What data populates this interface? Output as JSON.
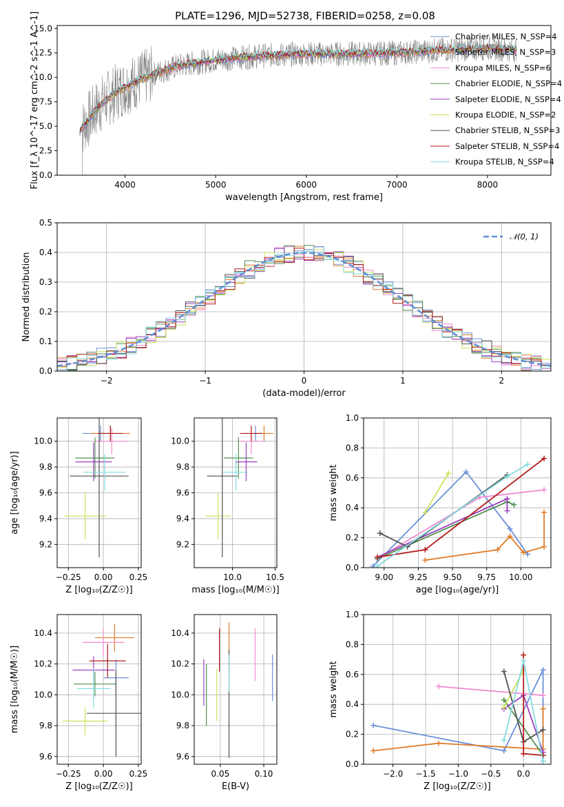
{
  "title": "PLATE=1296, MJD=52738, FIBERID=0258, z=0.08",
  "colors": {
    "data": "#808080",
    "gaussian": "#5b8ed6",
    "grid": "#b0b0b0",
    "models": [
      "#6a8fd8",
      "#e07b28",
      "#f08ad0",
      "#4f8f4f",
      "#9b3fc0",
      "#c7e45a",
      "#505050",
      "#b31b1b",
      "#86dbe0"
    ]
  },
  "chart_data": [
    {
      "id": "spectrum",
      "type": "line",
      "xlabel": "wavelength [Angstrom, rest frame]",
      "ylabel": "Flux [f_λ 10^-17 erg cm^-2 s^-1 A^-1]",
      "xlim": [
        3250,
        8700
      ],
      "ylim": [
        0,
        15.3
      ],
      "xticks": [
        "4000",
        "5000",
        "6000",
        "7000",
        "8000"
      ],
      "yticks": [
        "0.0",
        "2.5",
        "5.0",
        "7.5",
        "10.0",
        "12.5",
        "15.0"
      ],
      "grid": false,
      "legend_position": "top-right",
      "series": [
        {
          "name": "Chabrier MILES, N_SSP=4"
        },
        {
          "name": "Salpeter MILES, N_SSP=3"
        },
        {
          "name": "Kroupa MILES, N_SSP=6"
        },
        {
          "name": "Chabrier ELODIE, N_SSP=4"
        },
        {
          "name": "Salpeter ELODIE, N_SSP=4"
        },
        {
          "name": "Kroupa ELODIE, N_SSP=2"
        },
        {
          "name": "Chabrier STELIB, N_SSP=3"
        },
        {
          "name": "Salpeter STELIB, N_SSP=4"
        },
        {
          "name": "Kroupa STELIB, N_SSP=4"
        }
      ],
      "continuum_points": [
        [
          3500,
          4.5
        ],
        [
          3700,
          7.0
        ],
        [
          3900,
          8.5
        ],
        [
          4100,
          9.5
        ],
        [
          4300,
          10.3
        ],
        [
          4600,
          11.2
        ],
        [
          5000,
          11.8
        ],
        [
          5500,
          12.2
        ],
        [
          6000,
          12.4
        ],
        [
          6500,
          12.4
        ],
        [
          7000,
          12.5
        ],
        [
          7500,
          12.8
        ],
        [
          8000,
          13.0
        ],
        [
          8300,
          12.8
        ]
      ]
    },
    {
      "id": "residuals",
      "type": "histogram",
      "xlabel": "(data-model)/error",
      "ylabel": "Normed distribution",
      "xlim": [
        -2.5,
        2.5
      ],
      "ylim": [
        0,
        0.5
      ],
      "xticks": [
        "−2",
        "−1",
        "0",
        "1",
        "2"
      ],
      "yticks": [
        "0.0",
        "0.1",
        "0.2",
        "0.3",
        "0.4",
        "0.5"
      ],
      "grid": true,
      "legend": "𝒩(0, 1)",
      "legend_position": "top-right",
      "bin_width": 0.1
    },
    {
      "id": "age-vs-Z",
      "type": "errorbar",
      "xlabel": "Z [log₁₀(Z/Z☉)]",
      "ylabel": "age [log₁₀(age/yr)]",
      "xlim": [
        -0.33,
        0.27
      ],
      "ylim": [
        9.02,
        10.18
      ],
      "xticks": [
        "−0.25",
        "0.00",
        "0.25"
      ],
      "yticks": [
        "9.2",
        "9.4",
        "9.6",
        "9.8",
        "10.0"
      ],
      "grid": true,
      "points": [
        {
          "x": -0.02,
          "y": 10.06,
          "xerr": 0.13,
          "yerr": 0.06
        },
        {
          "x": 0.05,
          "y": 10.06,
          "xerr": 0.14,
          "yerr": 0.06
        },
        {
          "x": 0.06,
          "y": 10.0,
          "xerr": 0.12,
          "yerr": 0.1
        },
        {
          "x": -0.06,
          "y": 9.87,
          "xerr": 0.14,
          "yerr": 0.16
        },
        {
          "x": -0.07,
          "y": 9.84,
          "xerr": 0.13,
          "yerr": 0.15
        },
        {
          "x": -0.13,
          "y": 9.42,
          "xerr": 0.15,
          "yerr": 0.18
        },
        {
          "x": -0.03,
          "y": 9.73,
          "xerr": 0.21,
          "yerr": 0.63
        },
        {
          "x": 0.05,
          "y": 10.06,
          "xerr": 0.09,
          "yerr": 0.06
        },
        {
          "x": 0.01,
          "y": 9.76,
          "xerr": 0.15,
          "yerr": 0.14
        }
      ]
    },
    {
      "id": "age-vs-mass",
      "type": "errorbar",
      "xlabel": "mass [log₁₀(M/M☉)]",
      "ylabel": "",
      "xlim": [
        9.55,
        10.52
      ],
      "ylim": [
        9.02,
        10.18
      ],
      "xticks": [
        "10.0",
        "10.5"
      ],
      "yticks": [
        "9.2",
        "9.4",
        "9.6",
        "9.8",
        "10.0"
      ],
      "grid": true,
      "points": [
        {
          "x": 10.27,
          "y": 10.06,
          "xerr": 0.13,
          "yerr": 0.06
        },
        {
          "x": 10.37,
          "y": 10.06,
          "xerr": 0.11,
          "yerr": 0.06
        },
        {
          "x": 10.22,
          "y": 10.0,
          "xerr": 0.14,
          "yerr": 0.1
        },
        {
          "x": 10.07,
          "y": 9.87,
          "xerr": 0.17,
          "yerr": 0.16
        },
        {
          "x": 10.16,
          "y": 9.84,
          "xerr": 0.13,
          "yerr": 0.15
        },
        {
          "x": 9.83,
          "y": 9.42,
          "xerr": 0.15,
          "yerr": 0.18
        },
        {
          "x": 9.88,
          "y": 9.73,
          "xerr": 0.18,
          "yerr": 0.63
        },
        {
          "x": 10.22,
          "y": 10.06,
          "xerr": 0.13,
          "yerr": 0.06
        },
        {
          "x": 10.04,
          "y": 9.76,
          "xerr": 0.15,
          "yerr": 0.14
        }
      ]
    },
    {
      "id": "weight-vs-age",
      "type": "line",
      "xlabel": "age  [log₁₀(age/yr)]",
      "ylabel": "mass weight",
      "xlim": [
        8.85,
        10.22
      ],
      "ylim": [
        0,
        1.0
      ],
      "xticks": [
        "9.00",
        "9.25",
        "9.50",
        "9.75",
        "10.00"
      ],
      "yticks": [
        "0.0",
        "0.2",
        "0.4",
        "0.6",
        "0.8",
        "1.0"
      ],
      "grid": true,
      "series": [
        {
          "points": [
            [
              8.92,
              0.01
            ],
            [
              9.6,
              0.64
            ],
            [
              9.92,
              0.26
            ],
            [
              10.05,
              0.09
            ]
          ]
        },
        {
          "points": [
            [
              9.3,
              0.05
            ],
            [
              9.83,
              0.12
            ],
            [
              9.92,
              0.21
            ],
            [
              10.02,
              0.1
            ],
            [
              10.17,
              0.14
            ],
            [
              10.17,
              0.37
            ]
          ]
        },
        {
          "points": [
            [
              8.95,
              0.06
            ],
            [
              9.7,
              0.47
            ],
            [
              10.17,
              0.52
            ]
          ]
        },
        {
          "points": [
            [
              8.95,
              0.06
            ],
            [
              9.9,
              0.44
            ],
            [
              9.95,
              0.42
            ]
          ]
        },
        {
          "points": [
            [
              8.95,
              0.07
            ],
            [
              9.9,
              0.46
            ],
            [
              9.9,
              0.38
            ]
          ]
        },
        {
          "points": [
            [
              9.3,
              0.37
            ],
            [
              9.47,
              0.63
            ]
          ]
        },
        {
          "points": [
            [
              8.97,
              0.23
            ],
            [
              9.17,
              0.14
            ],
            [
              9.9,
              0.62
            ]
          ]
        },
        {
          "points": [
            [
              8.95,
              0.07
            ],
            [
              9.3,
              0.12
            ],
            [
              10.17,
              0.73
            ]
          ]
        },
        {
          "points": [
            [
              8.95,
              0.01
            ],
            [
              9.9,
              0.61
            ],
            [
              10.05,
              0.69
            ]
          ]
        }
      ]
    },
    {
      "id": "mass-vs-Z",
      "type": "errorbar",
      "xlabel": "Z [log₁₀(Z/Z☉)]",
      "ylabel": "mass [log₁₀(M/M☉)]",
      "xlim": [
        -0.33,
        0.27
      ],
      "ylim": [
        9.55,
        10.52
      ],
      "xticks": [
        "−0.25",
        "0.00",
        "0.25"
      ],
      "yticks": [
        "9.6",
        "9.8",
        "10.0",
        "10.2",
        "10.4"
      ],
      "grid": true,
      "points": [
        {
          "x": 0.09,
          "y": 10.11,
          "xerr": 0.09,
          "yerr": 0.12
        },
        {
          "x": 0.08,
          "y": 10.37,
          "xerr": 0.14,
          "yerr": 0.09
        },
        {
          "x": 0.0,
          "y": 10.34,
          "xerr": 0.15,
          "yerr": 0.09
        },
        {
          "x": -0.06,
          "y": 10.07,
          "xerr": 0.15,
          "yerr": 0.08
        },
        {
          "x": -0.07,
          "y": 10.16,
          "xerr": 0.15,
          "yerr": 0.09
        },
        {
          "x": -0.13,
          "y": 9.83,
          "xerr": 0.16,
          "yerr": 0.09
        },
        {
          "x": 0.09,
          "y": 9.88,
          "xerr": 0.21,
          "yerr": 0.28
        },
        {
          "x": 0.03,
          "y": 10.22,
          "xerr": 0.13,
          "yerr": 0.11
        },
        {
          "x": -0.07,
          "y": 10.04,
          "xerr": 0.12,
          "yerr": 0.13
        }
      ]
    },
    {
      "id": "mass-vs-EBV",
      "type": "errorbar",
      "xlabel": "E(B-V)",
      "ylabel": "",
      "xlim": [
        0.02,
        0.115
      ],
      "ylim": [
        9.55,
        10.52
      ],
      "xticks": [
        "0.05",
        "0.10"
      ],
      "yticks": [
        "9.6",
        "9.8",
        "10.0",
        "10.2",
        "10.4"
      ],
      "grid": true,
      "points": [
        {
          "x": 0.11,
          "y": 10.11,
          "yerr": 0.15
        },
        {
          "x": 0.06,
          "y": 10.31,
          "yerr": 0.16
        },
        {
          "x": 0.09,
          "y": 10.26,
          "yerr": 0.17
        },
        {
          "x": 0.034,
          "y": 10.0,
          "yerr": 0.2
        },
        {
          "x": 0.031,
          "y": 10.08,
          "yerr": 0.15
        },
        {
          "x": 0.046,
          "y": 10.0,
          "yerr": 0.17
        },
        {
          "x": 0.06,
          "y": 9.94,
          "yerr": 0.35
        },
        {
          "x": 0.049,
          "y": 10.29,
          "yerr": 0.14
        },
        {
          "x": 0.06,
          "y": 10.14,
          "yerr": 0.12
        }
      ]
    },
    {
      "id": "weight-vs-Z",
      "type": "line",
      "xlabel": "Z [log₁₀(Z/Z☉)]",
      "ylabel": "mass weight",
      "xlim": [
        -2.45,
        0.42
      ],
      "ylim": [
        0,
        1.0
      ],
      "xticks": [
        "−2.0",
        "−1.5",
        "−1.0",
        "−0.5",
        "0.0"
      ],
      "yticks": [
        "0.0",
        "0.2",
        "0.4",
        "0.6",
        "0.8",
        "1.0"
      ],
      "grid": true,
      "series": [
        {
          "points": [
            [
              -2.3,
              0.26
            ],
            [
              -0.3,
              0.09
            ],
            [
              0.3,
              0.63
            ],
            [
              0.3,
              0.02
            ]
          ]
        },
        {
          "points": [
            [
              -2.3,
              0.09
            ],
            [
              -1.3,
              0.14
            ],
            [
              0.3,
              0.1
            ],
            [
              0.3,
              0.37
            ]
          ]
        },
        {
          "points": [
            [
              -1.3,
              0.52
            ],
            [
              0.3,
              0.46
            ]
          ]
        },
        {
          "points": [
            [
              -0.3,
              0.43
            ],
            [
              0.3,
              0.06
            ]
          ]
        },
        {
          "points": [
            [
              -0.3,
              0.37
            ],
            [
              0.0,
              0.46
            ],
            [
              0.3,
              0.08
            ]
          ]
        },
        {
          "points": [
            [
              -0.3,
              0.38
            ],
            [
              0.0,
              0.63
            ]
          ]
        },
        {
          "points": [
            [
              -0.3,
              0.62
            ],
            [
              0.0,
              0.15
            ],
            [
              0.3,
              0.23
            ]
          ]
        },
        {
          "points": [
            [
              0.0,
              0.73
            ],
            [
              0.0,
              0.07
            ],
            [
              0.3,
              0.06
            ]
          ]
        },
        {
          "points": [
            [
              -0.3,
              0.16
            ],
            [
              0.0,
              0.69
            ],
            [
              0.3,
              0.02
            ]
          ]
        }
      ]
    }
  ]
}
